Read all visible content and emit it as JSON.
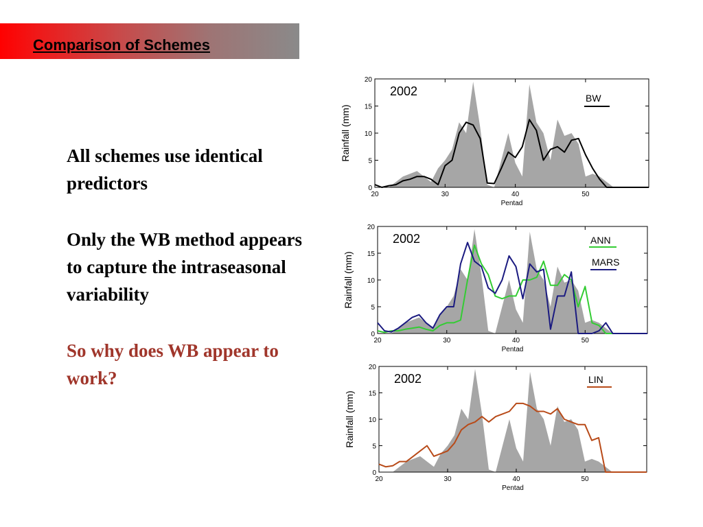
{
  "slide": {
    "title": "Comparison of Schemes",
    "bullets": [
      "All schemes use identical predictors",
      "Only the WB method appears to capture the intraseasonal variability",
      "So why does WB appear to work?"
    ]
  },
  "colors": {
    "bars": "#a6a6a6",
    "BW": "#000000",
    "ANN": "#33cc33",
    "MARS": "#1a1a80",
    "LIN": "#b84a18",
    "accent_red": "#a0362b"
  },
  "chart_data": [
    {
      "type": "area",
      "year_label": "2002",
      "xlabel": "Pentad",
      "ylabel": "Rainfall (mm)",
      "xlim": [
        20,
        59
      ],
      "ylim": [
        0,
        20
      ],
      "xticks": [
        20,
        30,
        40,
        50
      ],
      "yticks": [
        0,
        5,
        10,
        15,
        20
      ],
      "observed": {
        "x": [
          20,
          21,
          22,
          23,
          24,
          25,
          26,
          27,
          28,
          29,
          30,
          31,
          32,
          33,
          34,
          35,
          36,
          37,
          38,
          39,
          40,
          41,
          42,
          43,
          44,
          45,
          46,
          47,
          48,
          49,
          50,
          51,
          52,
          53,
          54,
          55,
          56,
          57,
          58,
          59
        ],
        "values": [
          0,
          0,
          0,
          1,
          2,
          2.5,
          3,
          2,
          1,
          3.5,
          5,
          7,
          12,
          10,
          19.5,
          11,
          0.5,
          0,
          5,
          10,
          4.5,
          2,
          19,
          12,
          10,
          5,
          12.5,
          9.5,
          10,
          8,
          2,
          2.5,
          2,
          1,
          0,
          0,
          0,
          0,
          0,
          0
        ]
      },
      "series": [
        {
          "name": "BW",
          "values": [
            0.5,
            0,
            0.3,
            0.5,
            1.2,
            1.5,
            2,
            2,
            1.5,
            0.5,
            4,
            5,
            10,
            12,
            11.5,
            9,
            0.8,
            0.7,
            3.5,
            6.5,
            5.5,
            7.5,
            12.5,
            10.5,
            5,
            7,
            7.5,
            6.5,
            8.7,
            9,
            6,
            3.5,
            1.5,
            0,
            0,
            0,
            0,
            0,
            0,
            0
          ]
        }
      ]
    },
    {
      "type": "area",
      "year_label": "2002",
      "xlabel": "Pentad",
      "ylabel": "Rainfall (mm)",
      "xlim": [
        20,
        59
      ],
      "ylim": [
        0,
        20
      ],
      "xticks": [
        20,
        30,
        40,
        50
      ],
      "yticks": [
        0,
        5,
        10,
        15,
        20
      ],
      "observed": {
        "x": [
          20,
          21,
          22,
          23,
          24,
          25,
          26,
          27,
          28,
          29,
          30,
          31,
          32,
          33,
          34,
          35,
          36,
          37,
          38,
          39,
          40,
          41,
          42,
          43,
          44,
          45,
          46,
          47,
          48,
          49,
          50,
          51,
          52,
          53,
          54,
          55,
          56,
          57,
          58,
          59
        ],
        "values": [
          0,
          0,
          0,
          1,
          2,
          2.5,
          3,
          2,
          1,
          3.5,
          5,
          7,
          12,
          10,
          19.5,
          11,
          0.5,
          0,
          5,
          10,
          4.5,
          2,
          19,
          12,
          10,
          5,
          12.5,
          9.5,
          10,
          8,
          2,
          2.5,
          2,
          1,
          0,
          0,
          0,
          0,
          0,
          0
        ]
      },
      "series": [
        {
          "name": "ANN",
          "values": [
            0.5,
            0.2,
            0.5,
            0.5,
            0.8,
            1,
            1.2,
            0.8,
            0.5,
            1.5,
            2,
            2,
            2.5,
            10,
            16.5,
            13,
            11,
            7,
            6.5,
            7,
            7,
            10,
            10,
            10.5,
            13.5,
            9,
            9,
            11,
            10,
            5,
            8.8,
            2,
            1.5,
            0,
            0,
            0,
            0,
            0,
            0,
            0
          ]
        },
        {
          "name": "MARS",
          "values": [
            2,
            0.5,
            0.3,
            1,
            2,
            3,
            3.5,
            2,
            1,
            3.5,
            5,
            5,
            13,
            17,
            13.5,
            12.5,
            8.5,
            7.5,
            10,
            14.5,
            12.5,
            6.5,
            13,
            11.5,
            12,
            0.8,
            7,
            7,
            11.5,
            0,
            0,
            0,
            0.5,
            2,
            0,
            0,
            0,
            0,
            0,
            0
          ]
        }
      ]
    },
    {
      "type": "area",
      "year_label": "2002",
      "xlabel": "Pentad",
      "ylabel": "Rainfall (mm)",
      "xlim": [
        20,
        59
      ],
      "ylim": [
        0,
        20
      ],
      "xticks": [
        20,
        30,
        40,
        50
      ],
      "yticks": [
        0,
        5,
        10,
        15,
        20
      ],
      "observed": {
        "x": [
          20,
          21,
          22,
          23,
          24,
          25,
          26,
          27,
          28,
          29,
          30,
          31,
          32,
          33,
          34,
          35,
          36,
          37,
          38,
          39,
          40,
          41,
          42,
          43,
          44,
          45,
          46,
          47,
          48,
          49,
          50,
          51,
          52,
          53,
          54,
          55,
          56,
          57,
          58,
          59
        ],
        "values": [
          0,
          0,
          0,
          1,
          2,
          2.5,
          3,
          2,
          1,
          3.5,
          5,
          7,
          12,
          10,
          19.5,
          11,
          0.5,
          0,
          5,
          10,
          4.5,
          2,
          19,
          12,
          10,
          5,
          12.5,
          9.5,
          10,
          8,
          2,
          2.5,
          2,
          1,
          0,
          0,
          0,
          0,
          0,
          0
        ]
      },
      "series": [
        {
          "name": "LIN",
          "values": [
            1.5,
            1,
            1.2,
            2,
            2,
            3,
            4,
            5,
            3,
            3.5,
            4,
            5.5,
            8,
            9,
            9.5,
            10.5,
            9.5,
            10.5,
            11,
            11.5,
            13,
            13,
            12.5,
            11.5,
            11.5,
            11,
            12,
            10,
            9.5,
            9,
            9,
            6,
            6.5,
            0,
            0,
            0,
            0,
            0,
            0,
            0
          ]
        }
      ]
    }
  ]
}
